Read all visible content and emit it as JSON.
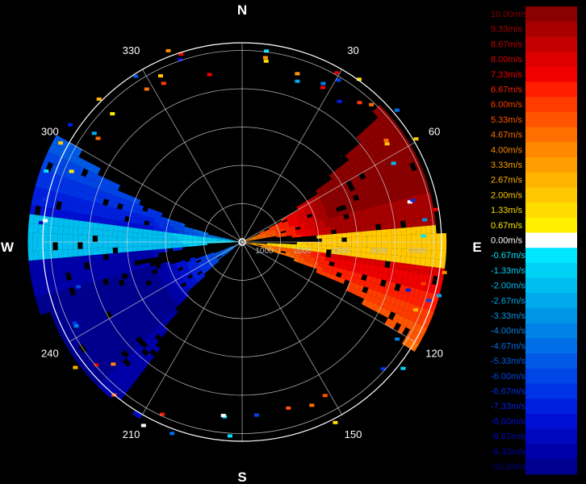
{
  "chart_data": {
    "type": "polar radial-velocity (PPI) display",
    "compass": {
      "north": "N",
      "south": "S",
      "east": "E",
      "west": "W"
    },
    "azimuth_labels": [
      {
        "deg": 30,
        "text": "30"
      },
      {
        "deg": 60,
        "text": "60"
      },
      {
        "deg": 120,
        "text": "120"
      },
      {
        "deg": 150,
        "text": "150"
      },
      {
        "deg": 210,
        "text": "210"
      },
      {
        "deg": 240,
        "text": "240"
      },
      {
        "deg": 300,
        "text": "300"
      },
      {
        "deg": 330,
        "text": "330"
      }
    ],
    "range_labels": [
      "1000",
      "2000",
      "3000",
      "4000",
      "5000"
    ],
    "range_rings": [
      1000,
      2000,
      3000,
      4000,
      5000
    ],
    "max_range": 5200,
    "spoke_step_deg": 30,
    "grid": true,
    "velocity_pattern": {
      "approaching_color": "red",
      "receding_color": "blue",
      "zero_line_azimuth_deg": [
        90,
        270
      ],
      "red_sector_deg": [
        30,
        90
      ],
      "red_sector_west_deg": [
        255,
        300
      ],
      "blue_sector_deg": [
        85,
        125
      ],
      "blue_sector_sw_deg": [
        205,
        250
      ]
    },
    "legend": {
      "position": "right",
      "entries": [
        {
          "label": "10.00m/s",
          "color": "#8b0000"
        },
        {
          "label": "9.33m/s",
          "color": "#a80000"
        },
        {
          "label": "8.67m/s",
          "color": "#c40000"
        },
        {
          "label": "8.00m/s",
          "color": "#dc0000"
        },
        {
          "label": "7.33m/s",
          "color": "#f00000"
        },
        {
          "label": "6.67m/s",
          "color": "#ff1e00"
        },
        {
          "label": "6.00m/s",
          "color": "#ff3c00"
        },
        {
          "label": "5.33m/s",
          "color": "#ff5500"
        },
        {
          "label": "4.67m/s",
          "color": "#ff6e00"
        },
        {
          "label": "4.00m/s",
          "color": "#ff8800"
        },
        {
          "label": "3.33m/s",
          "color": "#ff9e00"
        },
        {
          "label": "2.67m/s",
          "color": "#ffb400"
        },
        {
          "label": "2.00m/s",
          "color": "#ffc800"
        },
        {
          "label": "1.33m/s",
          "color": "#ffdc00"
        },
        {
          "label": "0.67m/s",
          "color": "#fff000"
        },
        {
          "label": "0.00m/s",
          "color": "#ffffff"
        },
        {
          "label": "-0.67m/s",
          "color": "#00e6ff"
        },
        {
          "label": "-1.33m/s",
          "color": "#00d2f5"
        },
        {
          "label": "-2.00m/s",
          "color": "#00bef0"
        },
        {
          "label": "-2.67m/s",
          "color": "#00aaeb"
        },
        {
          "label": "-3.33m/s",
          "color": "#0096e6"
        },
        {
          "label": "-4.00m/s",
          "color": "#0082e6"
        },
        {
          "label": "-4.67m/s",
          "color": "#006ee6"
        },
        {
          "label": "-5.33m/s",
          "color": "#005ae6"
        },
        {
          "label": "-6.00m/s",
          "color": "#0046e6"
        },
        {
          "label": "-6.67m/s",
          "color": "#0032e6"
        },
        {
          "label": "-7.33m/s",
          "color": "#0020e0"
        },
        {
          "label": "-8.00m/s",
          "color": "#0010d2"
        },
        {
          "label": "-8.67m/s",
          "color": "#0008be"
        },
        {
          "label": "-9.33m/s",
          "color": "#0000aa"
        },
        {
          "label": "-10.00m/s",
          "color": "#000090"
        }
      ]
    }
  }
}
